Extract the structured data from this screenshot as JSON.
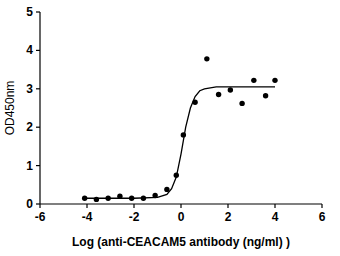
{
  "chart_data": {
    "type": "scatter",
    "x_label": "Log (anti-CEACAM5 antibody (ng/ml) )",
    "y_label": "OD450nm",
    "xlim": [
      -6,
      6
    ],
    "xticks": [
      -6,
      -4,
      -2,
      0,
      2,
      4,
      6
    ],
    "ylim": [
      0,
      5
    ],
    "yticks": [
      0,
      1,
      2,
      3,
      4,
      5
    ],
    "grid": false,
    "series": [
      {
        "type": "scatter",
        "marker": "circle",
        "color": "#000000",
        "x": [
          -4.1,
          -3.6,
          -3.1,
          -2.6,
          -2.1,
          -1.6,
          -1.1,
          -0.6,
          -0.2,
          0.1,
          0.6,
          1.1,
          1.6,
          2.1,
          2.6,
          3.1,
          3.6,
          4.0
        ],
        "values": [
          0.15,
          0.12,
          0.15,
          0.2,
          0.15,
          0.15,
          0.22,
          0.38,
          0.75,
          1.8,
          2.65,
          3.78,
          2.85,
          2.97,
          2.62,
          3.22,
          2.82,
          3.22
        ]
      },
      {
        "type": "line",
        "line_style": "solid",
        "color": "#000000",
        "x": [
          -4.1,
          -3,
          -2,
          -1,
          -0.6,
          -0.4,
          -0.2,
          0,
          0.2,
          0.4,
          0.6,
          0.8,
          1,
          1.5,
          2,
          3,
          4.0
        ],
        "values": [
          0.15,
          0.15,
          0.15,
          0.17,
          0.25,
          0.4,
          0.7,
          1.3,
          2.0,
          2.5,
          2.8,
          2.95,
          3.0,
          3.05,
          3.05,
          3.05,
          3.05
        ]
      }
    ]
  }
}
